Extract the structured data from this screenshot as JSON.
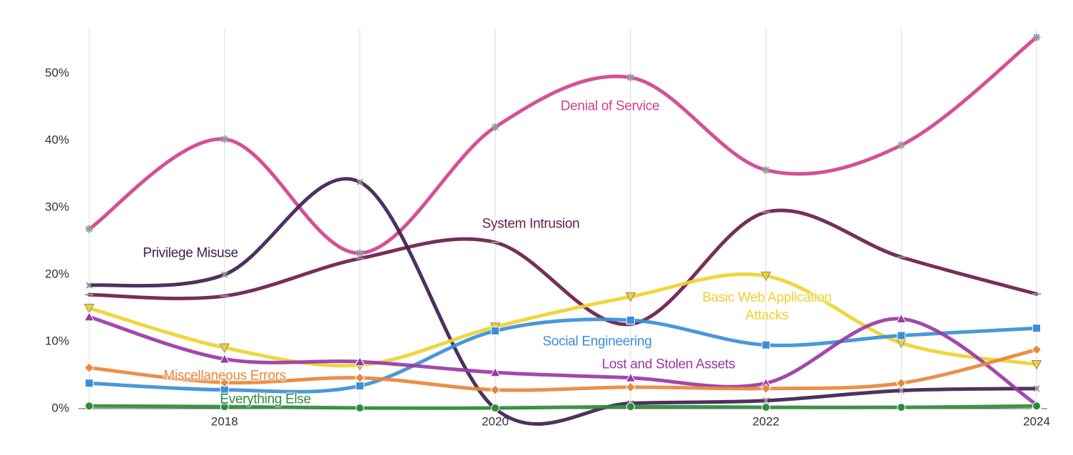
{
  "chart_data": {
    "type": "line",
    "x": [
      2017,
      2018,
      2019,
      2020,
      2021,
      2022,
      2023,
      2024
    ],
    "xlim": [
      2017,
      2024
    ],
    "xticks": [
      2018,
      2020,
      2022,
      2024
    ],
    "xminorticks": [
      2017,
      2019,
      2021,
      2023
    ],
    "ylim": [
      0,
      57
    ],
    "yticks": [
      {
        "value": 0,
        "label": "0%"
      },
      {
        "value": 10,
        "label": "10%"
      },
      {
        "value": 20,
        "label": "20%"
      },
      {
        "value": 30,
        "label": "30%"
      },
      {
        "value": 40,
        "label": "40%"
      },
      {
        "value": 50,
        "label": "50%"
      }
    ],
    "grid": true,
    "series": [
      {
        "name": "Denial of Service",
        "color": "#d2408e",
        "marker": "star",
        "values": [
          26.8,
          40.2,
          23.2,
          42.0,
          49.4,
          35.6,
          39.3,
          55.4
        ]
      },
      {
        "name": "System Intrusion",
        "color": "#6a1d4a",
        "marker": "line",
        "values": [
          17.0,
          16.8,
          22.4,
          24.8,
          12.6,
          29.3,
          22.6,
          17.1
        ]
      },
      {
        "name": "Privilege Misuse",
        "color": "#3e2050",
        "marker": "x",
        "values": [
          18.4,
          20.0,
          33.8,
          0,
          0.8,
          1.2,
          2.7,
          3.0
        ]
      },
      {
        "name": "Basic Web Application Attacks",
        "color": "#eed230",
        "marker": "triangle-down",
        "values": [
          15.0,
          9.1,
          6.5,
          12.2,
          16.7,
          19.8,
          9.8,
          6.6
        ]
      },
      {
        "name": "Social Engineering",
        "color": "#3a8fd6",
        "marker": "square",
        "values": [
          3.8,
          2.8,
          3.4,
          11.6,
          13.2,
          9.5,
          10.9,
          12.0
        ]
      },
      {
        "name": "Lost and Stolen Assets",
        "color": "#9a38a6",
        "marker": "triangle",
        "values": [
          13.7,
          7.4,
          7.0,
          5.4,
          4.6,
          3.8,
          13.4,
          0.6
        ]
      },
      {
        "name": "Miscellaneous Errors",
        "color": "#e8873a",
        "marker": "diamond",
        "values": [
          6.1,
          3.9,
          4.6,
          2.8,
          3.2,
          3.0,
          3.8,
          8.8
        ]
      },
      {
        "name": "Everything Else",
        "color": "#2e8b3a",
        "marker": "circle",
        "values": [
          0.4,
          0.3,
          0.1,
          0.1,
          0.3,
          0.2,
          0.2,
          0.4
        ]
      }
    ]
  }
}
